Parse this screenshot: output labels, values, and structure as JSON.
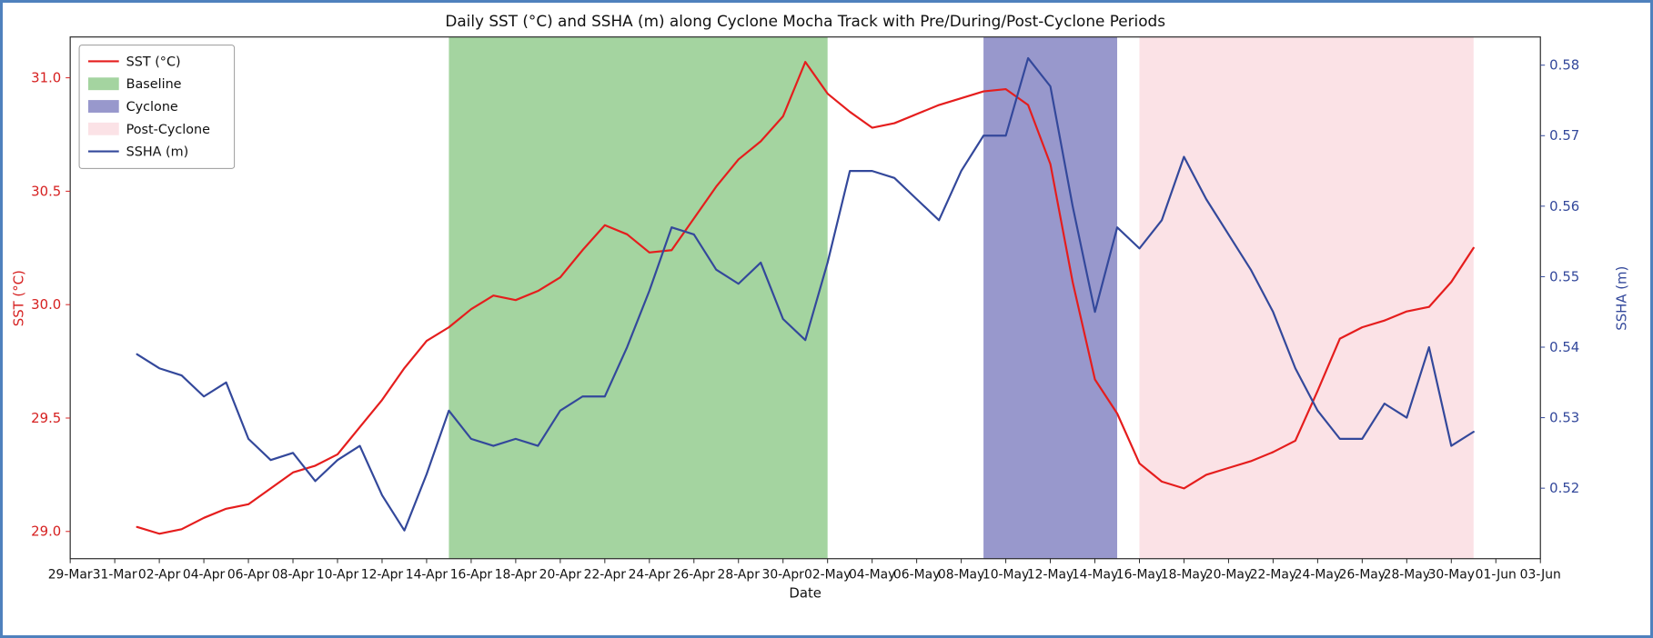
{
  "figure": {
    "title": "Daily SST (°C) and SSHA (m) along Cyclone Mocha Track with Pre/During/Post-Cyclone Periods",
    "xlabel": "Date",
    "ylabel_left": "SST (°C)",
    "ylabel_right": "SSHA (m)"
  },
  "chart_data": {
    "type": "line",
    "title": "Daily SST (°C) and SSHA (m) along Cyclone Mocha Track with Pre/During/Post-Cyclone Periods",
    "xlabel": "Date",
    "legend_position": "upper-left",
    "grid": false,
    "x_domain_days": [
      0,
      66
    ],
    "x_ticks": [
      {
        "day": 0,
        "label": "29-Mar"
      },
      {
        "day": 2,
        "label": "31-Mar"
      },
      {
        "day": 4,
        "label": "02-Apr"
      },
      {
        "day": 6,
        "label": "04-Apr"
      },
      {
        "day": 8,
        "label": "06-Apr"
      },
      {
        "day": 10,
        "label": "08-Apr"
      },
      {
        "day": 12,
        "label": "10-Apr"
      },
      {
        "day": 14,
        "label": "12-Apr"
      },
      {
        "day": 16,
        "label": "14-Apr"
      },
      {
        "day": 18,
        "label": "16-Apr"
      },
      {
        "day": 20,
        "label": "18-Apr"
      },
      {
        "day": 22,
        "label": "20-Apr"
      },
      {
        "day": 24,
        "label": "22-Apr"
      },
      {
        "day": 26,
        "label": "24-Apr"
      },
      {
        "day": 28,
        "label": "26-Apr"
      },
      {
        "day": 30,
        "label": "28-Apr"
      },
      {
        "day": 32,
        "label": "30-Apr"
      },
      {
        "day": 34,
        "label": "02-May"
      },
      {
        "day": 36,
        "label": "04-May"
      },
      {
        "day": 38,
        "label": "06-May"
      },
      {
        "day": 40,
        "label": "08-May"
      },
      {
        "day": 42,
        "label": "10-May"
      },
      {
        "day": 44,
        "label": "12-May"
      },
      {
        "day": 46,
        "label": "14-May"
      },
      {
        "day": 48,
        "label": "16-May"
      },
      {
        "day": 50,
        "label": "18-May"
      },
      {
        "day": 52,
        "label": "20-May"
      },
      {
        "day": 54,
        "label": "22-May"
      },
      {
        "day": 56,
        "label": "24-May"
      },
      {
        "day": 58,
        "label": "26-May"
      },
      {
        "day": 60,
        "label": "28-May"
      },
      {
        "day": 62,
        "label": "30-May"
      },
      {
        "day": 64,
        "label": "01-Jun"
      },
      {
        "day": 66,
        "label": "03-Jun"
      }
    ],
    "left_axis": {
      "label": "SST (°C)",
      "color": "#d62020",
      "ticks": [
        29.0,
        29.5,
        30.0,
        30.5,
        31.0
      ],
      "lim": [
        28.88,
        31.18
      ],
      "decimals": 1
    },
    "right_axis": {
      "label": "SSHA (m)",
      "color": "#33489b",
      "ticks": [
        0.52,
        0.53,
        0.54,
        0.55,
        0.56,
        0.57,
        0.58
      ],
      "lim": [
        0.51,
        0.584
      ],
      "decimals": 2
    },
    "dates": [
      "01-Apr",
      "02-Apr",
      "03-Apr",
      "04-Apr",
      "05-Apr",
      "06-Apr",
      "07-Apr",
      "08-Apr",
      "09-Apr",
      "10-Apr",
      "11-Apr",
      "12-Apr",
      "13-Apr",
      "14-Apr",
      "15-Apr",
      "16-Apr",
      "17-Apr",
      "18-Apr",
      "19-Apr",
      "20-Apr",
      "21-Apr",
      "22-Apr",
      "23-Apr",
      "24-Apr",
      "25-Apr",
      "26-Apr",
      "27-Apr",
      "28-Apr",
      "29-Apr",
      "30-Apr",
      "01-May",
      "02-May",
      "03-May",
      "04-May",
      "05-May",
      "06-May",
      "07-May",
      "08-May",
      "09-May",
      "10-May",
      "11-May",
      "12-May",
      "13-May",
      "14-May",
      "15-May",
      "16-May",
      "17-May",
      "18-May",
      "19-May",
      "20-May",
      "21-May",
      "22-May",
      "23-May",
      "24-May",
      "25-May",
      "26-May",
      "27-May",
      "28-May",
      "29-May",
      "30-May",
      "31-May"
    ],
    "series": [
      {
        "name": "SST (°C)",
        "axis": "left",
        "color": "#e51d1d",
        "start_day": 3,
        "values": [
          29.02,
          28.99,
          29.01,
          29.06,
          29.1,
          29.12,
          29.19,
          29.26,
          29.29,
          29.34,
          29.46,
          29.58,
          29.72,
          29.84,
          29.9,
          29.98,
          30.04,
          30.02,
          30.06,
          30.12,
          30.24,
          30.35,
          30.31,
          30.23,
          30.24,
          30.38,
          30.52,
          30.64,
          30.72,
          30.83,
          31.07,
          30.93,
          30.85,
          30.78,
          30.8,
          30.84,
          30.88,
          30.91,
          30.94,
          30.95,
          30.88,
          30.62,
          30.1,
          29.67,
          29.52,
          29.3,
          29.22,
          29.19,
          29.25,
          29.28,
          29.31,
          29.35,
          29.4,
          29.62,
          29.85,
          29.9,
          29.93,
          29.97,
          29.99,
          30.1,
          30.25
        ]
      },
      {
        "name": "SSHA (m)",
        "axis": "right",
        "color": "#33489b",
        "start_day": 3,
        "values": [
          0.539,
          0.537,
          0.536,
          0.533,
          0.535,
          0.527,
          0.524,
          0.525,
          0.521,
          0.524,
          0.526,
          0.519,
          0.514,
          0.522,
          0.531,
          0.527,
          0.526,
          0.527,
          0.526,
          0.531,
          0.533,
          0.533,
          0.54,
          0.548,
          0.557,
          0.556,
          0.551,
          0.549,
          0.552,
          0.544,
          0.541,
          0.552,
          0.565,
          0.565,
          0.564,
          0.561,
          0.558,
          0.565,
          0.57,
          0.57,
          0.581,
          0.577,
          0.56,
          0.545,
          0.557,
          0.554,
          0.558,
          0.567,
          0.561,
          0.556,
          0.551,
          0.545,
          0.537,
          0.531,
          0.527,
          0.527,
          0.532,
          0.53,
          0.54,
          0.526,
          0.528
        ]
      }
    ],
    "regions": [
      {
        "name": "Baseline",
        "start_day": 17,
        "end_day": 34,
        "start_date": "15-Apr",
        "end_date": "02-May",
        "color": "#a4d4a0"
      },
      {
        "name": "Cyclone",
        "start_day": 41,
        "end_day": 47,
        "start_date": "09-May",
        "end_date": "15-May",
        "color": "#9898cc"
      },
      {
        "name": "Post-Cyclone",
        "start_day": 48,
        "end_day": 63,
        "start_date": "16-May",
        "end_date": "31-May",
        "color": "#fbe2e6"
      }
    ],
    "legend": [
      {
        "label": "SST (°C)",
        "type": "line",
        "color": "#e51d1d"
      },
      {
        "label": "Baseline",
        "type": "patch",
        "color": "#a4d4a0"
      },
      {
        "label": "Cyclone",
        "type": "patch",
        "color": "#9898cc"
      },
      {
        "label": "Post-Cyclone",
        "type": "patch",
        "color": "#fbe2e6"
      },
      {
        "label": "SSHA (m)",
        "type": "line",
        "color": "#33489b"
      }
    ]
  }
}
